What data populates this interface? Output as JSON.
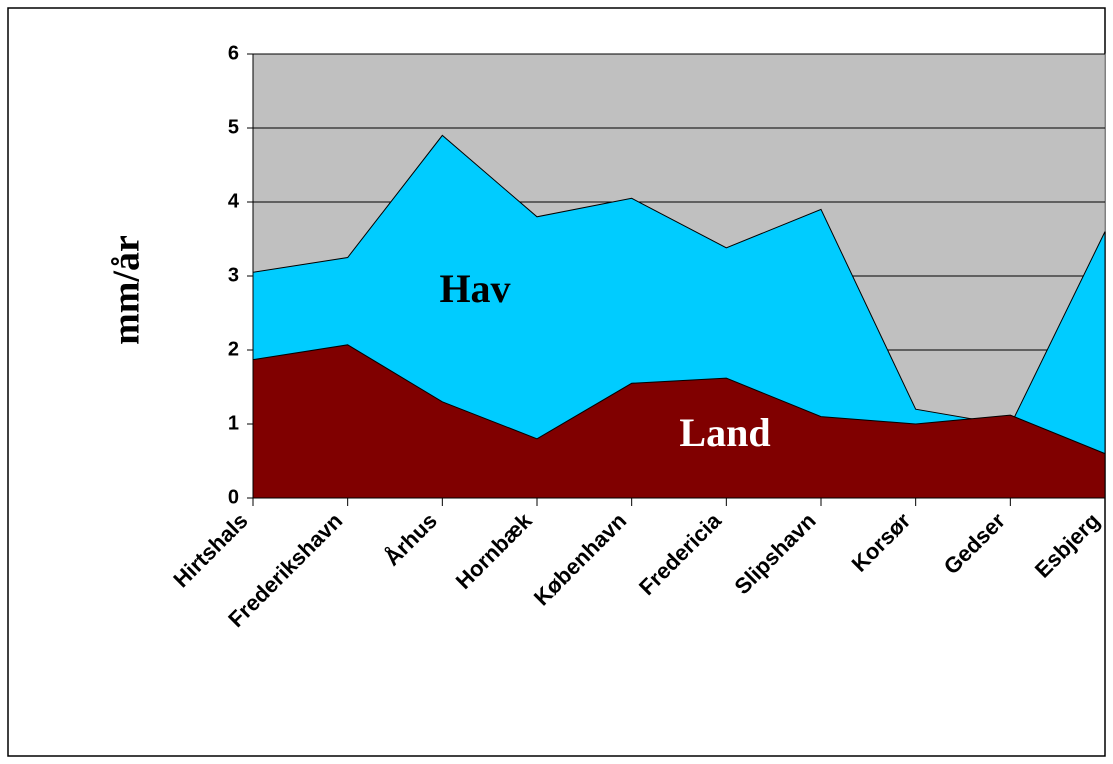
{
  "chart_data": {
    "type": "area",
    "y_label": "mm/år",
    "categories": [
      "Hirtshals",
      "Frederikshavn",
      "Århus",
      "Hornbæk",
      "København",
      "Fredericia",
      "Slipshavn",
      "Korsør",
      "Gedser",
      "Esbjerg"
    ],
    "series": [
      {
        "name": "Hav",
        "color": "#00ccff",
        "values": [
          3.05,
          3.25,
          4.9,
          3.8,
          4.05,
          3.38,
          3.9,
          1.2,
          0.98,
          3.6
        ]
      },
      {
        "name": "Land",
        "color": "#800000",
        "values": [
          1.87,
          2.07,
          1.3,
          0.8,
          1.55,
          1.62,
          1.1,
          1.0,
          1.12,
          0.6
        ]
      }
    ],
    "ylim": [
      0,
      6
    ],
    "yticks": [
      0,
      1,
      2,
      3,
      4,
      5,
      6
    ],
    "grid": true
  }
}
